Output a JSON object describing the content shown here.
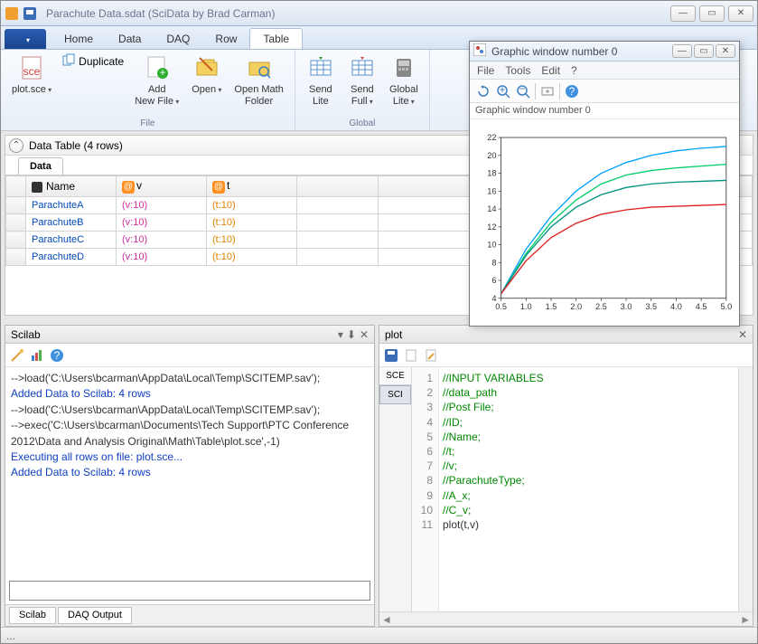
{
  "title": "Parachute Data.sdat  (SciData by Brad Carman)",
  "ribbon_tabs": {
    "file": "",
    "home": "Home",
    "data": "Data",
    "daq": "DAQ",
    "row": "Row",
    "table": "Table"
  },
  "ribbon": {
    "file_group": {
      "plot_sce": "plot.sce",
      "duplicate": "Duplicate",
      "add_new_file": "Add\nNew File",
      "open": "Open",
      "open_math_folder": "Open Math\nFolder",
      "label": "File"
    },
    "global_group": {
      "send_lite": "Send\nLite",
      "send_full": "Send\nFull",
      "global_lite": "Global\nLite",
      "label": "Global"
    }
  },
  "data_panel": {
    "header": "Data Table (4 rows)",
    "tab": "Data",
    "columns": {
      "name": "Name",
      "v": "v",
      "t": "t"
    },
    "rows": [
      {
        "name": "ParachuteA",
        "v": "(v:10)",
        "t": "(t:10)"
      },
      {
        "name": "ParachuteB",
        "v": "(v:10)",
        "t": "(t:10)"
      },
      {
        "name": "ParachuteC",
        "v": "(v:10)",
        "t": "(t:10)"
      },
      {
        "name": "ParachuteD",
        "v": "(v:10)",
        "t": "(t:10)"
      }
    ]
  },
  "scilab": {
    "title": "Scilab",
    "lines": [
      {
        "cls": "cmd",
        "text": "-->load('C:\\Users\\bcarman\\AppData\\Local\\Temp\\SCITEMP.sav');"
      },
      {
        "cls": "info",
        "text": "Added Data to Scilab: 4 rows"
      },
      {
        "cls": "cmd",
        "text": "-->load('C:\\Users\\bcarman\\AppData\\Local\\Temp\\SCITEMP.sav');"
      },
      {
        "cls": "cmd",
        "text": "-->exec('C:\\Users\\bcarman\\Documents\\Tech Support\\PTC Conference 2012\\Data and Analysis Original\\Math\\Table\\plot.sce',-1)"
      },
      {
        "cls": "info",
        "text": "Executing all rows on file: plot.sce..."
      },
      {
        "cls": "info",
        "text": "Added Data to Scilab: 4 rows"
      }
    ],
    "tabs": {
      "scilab": "Scilab",
      "daq": "DAQ Output"
    }
  },
  "plot_panel": {
    "title": "plot",
    "side_tabs": {
      "sce": "SCE",
      "sci": "SCI"
    },
    "code": [
      {
        "n": 1,
        "text": "//INPUT VARIABLES",
        "cls": "comment"
      },
      {
        "n": 2,
        "text": "//data_path",
        "cls": "comment"
      },
      {
        "n": 3,
        "text": "//Post File;",
        "cls": "comment"
      },
      {
        "n": 4,
        "text": "//ID;",
        "cls": "comment"
      },
      {
        "n": 5,
        "text": "//Name;",
        "cls": "comment"
      },
      {
        "n": 6,
        "text": "//t;",
        "cls": "comment"
      },
      {
        "n": 7,
        "text": "//v;",
        "cls": "comment"
      },
      {
        "n": 8,
        "text": "//ParachuteType;",
        "cls": "comment"
      },
      {
        "n": 9,
        "text": "//A_x;",
        "cls": "comment"
      },
      {
        "n": 10,
        "text": "//C_v;",
        "cls": "comment"
      },
      {
        "n": 11,
        "text": "plot(t,v)",
        "cls": "kw"
      }
    ]
  },
  "graphic_window": {
    "title": "Graphic window number 0",
    "menu": {
      "file": "File",
      "tools": "Tools",
      "edit": "Edit",
      "help": "?"
    },
    "status": "Graphic window number 0",
    "chart": {
      "type": "line",
      "xlim": [
        0.5,
        5.0
      ],
      "xtick_step": 0.5,
      "ylim": [
        4,
        22
      ],
      "ytick_step": 2,
      "background_color": "#ffffff",
      "axis_color": "#333333",
      "series": [
        {
          "color": "#00a0ff",
          "points": [
            [
              0.5,
              4.5
            ],
            [
              1.0,
              9.5
            ],
            [
              1.5,
              13.2
            ],
            [
              2.0,
              16.0
            ],
            [
              2.5,
              18.0
            ],
            [
              3.0,
              19.2
            ],
            [
              3.5,
              20.0
            ],
            [
              4.0,
              20.5
            ],
            [
              4.5,
              20.8
            ],
            [
              5.0,
              21.0
            ]
          ]
        },
        {
          "color": "#00cc66",
          "points": [
            [
              0.5,
              4.5
            ],
            [
              1.0,
              9.0
            ],
            [
              1.5,
              12.5
            ],
            [
              2.0,
              15.0
            ],
            [
              2.5,
              16.8
            ],
            [
              3.0,
              17.8
            ],
            [
              3.5,
              18.3
            ],
            [
              4.0,
              18.6
            ],
            [
              4.5,
              18.8
            ],
            [
              5.0,
              19.0
            ]
          ]
        },
        {
          "color": "#009080",
          "points": [
            [
              0.5,
              4.5
            ],
            [
              1.0,
              8.8
            ],
            [
              1.5,
              12.0
            ],
            [
              2.0,
              14.2
            ],
            [
              2.5,
              15.6
            ],
            [
              3.0,
              16.4
            ],
            [
              3.5,
              16.8
            ],
            [
              4.0,
              17.0
            ],
            [
              4.5,
              17.1
            ],
            [
              5.0,
              17.2
            ]
          ]
        },
        {
          "color": "#e02020",
          "points": [
            [
              0.5,
              4.5
            ],
            [
              1.0,
              8.2
            ],
            [
              1.5,
              10.8
            ],
            [
              2.0,
              12.4
            ],
            [
              2.5,
              13.4
            ],
            [
              3.0,
              13.9
            ],
            [
              3.5,
              14.2
            ],
            [
              4.0,
              14.3
            ],
            [
              4.5,
              14.4
            ],
            [
              5.0,
              14.5
            ]
          ]
        }
      ]
    }
  },
  "statusbar": "..."
}
